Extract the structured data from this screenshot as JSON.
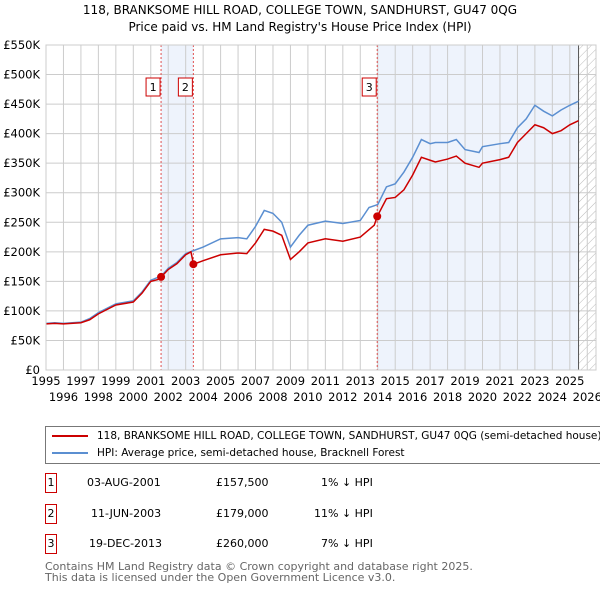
{
  "title": "118, BRANKSOME HILL ROAD, COLLEGE TOWN, SANDHURST, GU47 0QG",
  "subtitle": "Price paid vs. HM Land Registry's House Price Index (HPI)",
  "chart_data": {
    "type": "line",
    "ylim": [
      0,
      550000
    ],
    "xlim": [
      1995,
      2026.5
    ],
    "yticks": [
      {
        "v": 0,
        "l": "£0"
      },
      {
        "v": 50000,
        "l": "£50K"
      },
      {
        "v": 100000,
        "l": "£100K"
      },
      {
        "v": 150000,
        "l": "£150K"
      },
      {
        "v": 200000,
        "l": "£200K"
      },
      {
        "v": 250000,
        "l": "£250K"
      },
      {
        "v": 300000,
        "l": "£300K"
      },
      {
        "v": 350000,
        "l": "£350K"
      },
      {
        "v": 400000,
        "l": "£400K"
      },
      {
        "v": 450000,
        "l": "£450K"
      },
      {
        "v": 500000,
        "l": "£500K"
      },
      {
        "v": 550000,
        "l": "£550K"
      }
    ],
    "xticks": [
      "1995",
      "1996",
      "1997",
      "1998",
      "1999",
      "2000",
      "2001",
      "2002",
      "2003",
      "2004",
      "2005",
      "2006",
      "2007",
      "2008",
      "2009",
      "2010",
      "2011",
      "2012",
      "2013",
      "2014",
      "2015",
      "2016",
      "2017",
      "2018",
      "2019",
      "2020",
      "2021",
      "2022",
      "2023",
      "2024",
      "2025",
      "2026"
    ],
    "series": [
      {
        "name": "118, BRANKSOME HILL ROAD, COLLEGE TOWN, SANDHURST, GU47 0QG (semi-detached house)",
        "color": "#cc0000",
        "x": [
          1995,
          1995.5,
          1996,
          1997,
          1997.5,
          1998,
          1999,
          2000,
          2000.5,
          2001,
          2001.4,
          2001.6,
          2002,
          2002.5,
          2003,
          2003.3,
          2003.45,
          2004,
          2005,
          2006,
          2006.5,
          2007,
          2007.5,
          2008,
          2008.5,
          2009,
          2009.5,
          2010,
          2011,
          2012,
          2013,
          2013.8,
          2013.97,
          2014.5,
          2015,
          2015.5,
          2016,
          2016.5,
          2017,
          2017.3,
          2018,
          2018.5,
          2019,
          2019.8,
          2020,
          2021,
          2021.5,
          2022,
          2022.5,
          2023,
          2023.5,
          2024,
          2024.5,
          2025,
          2025.5
        ],
        "y": [
          78,
          79,
          78,
          80,
          85,
          95,
          110,
          115,
          130,
          150,
          153,
          157.5,
          170,
          180,
          195,
          200,
          179,
          185,
          195,
          198,
          197,
          215,
          238,
          235,
          228,
          187,
          200,
          215,
          222,
          218,
          225,
          245,
          260,
          290,
          292,
          305,
          330,
          360,
          355,
          352,
          357,
          362,
          350,
          343,
          350,
          356,
          360,
          385,
          400,
          415,
          410,
          400,
          405,
          415,
          422
        ]
      },
      {
        "name": "HPI: Average price, semi-detached house, Bracknell Forest",
        "color": "#5b8fd1",
        "x": [
          1995,
          1995.5,
          1996,
          1997,
          1997.5,
          1998,
          1999,
          2000,
          2000.5,
          2001,
          2001.6,
          2002,
          2002.5,
          2003,
          2003.45,
          2004,
          2005,
          2006,
          2006.5,
          2007,
          2007.5,
          2008,
          2008.5,
          2009,
          2009.5,
          2010,
          2011,
          2012,
          2013,
          2013.5,
          2014,
          2014.5,
          2015,
          2015.5,
          2016,
          2016.5,
          2017,
          2017.3,
          2018,
          2018.5,
          2019,
          2019.8,
          2020,
          2021,
          2021.5,
          2022,
          2022.5,
          2023,
          2023.5,
          2024,
          2024.5,
          2025,
          2025.5
        ],
        "y": [
          79,
          80,
          79,
          81,
          87,
          97,
          112,
          117,
          132,
          152,
          159,
          172,
          182,
          197,
          202,
          208,
          222,
          224,
          222,
          243,
          270,
          265,
          250,
          208,
          228,
          245,
          252,
          248,
          253,
          275,
          280,
          310,
          315,
          335,
          360,
          390,
          383,
          385,
          385,
          390,
          373,
          368,
          378,
          383,
          385,
          410,
          425,
          448,
          438,
          430,
          440,
          448,
          455
        ]
      }
    ],
    "sales": [
      {
        "n": "1",
        "x": 2001.59,
        "y": 157500
      },
      {
        "n": "2",
        "x": 2003.44,
        "y": 179000
      },
      {
        "n": "3",
        "x": 2013.97,
        "y": 260000
      }
    ],
    "shaded": [
      [
        2001.59,
        2003.44
      ],
      [
        2013.97,
        2025.5
      ]
    ],
    "hatch_from": 2025.5
  },
  "legend": [
    "118, BRANKSOME HILL ROAD, COLLEGE TOWN, SANDHURST, GU47 0QG (semi-detached house)",
    "HPI: Average price, semi-detached house, Bracknell Forest"
  ],
  "transactions": [
    {
      "n": "1",
      "date": "03-AUG-2001",
      "price": "£157,500",
      "hpi": "1% ↓ HPI"
    },
    {
      "n": "2",
      "date": "11-JUN-2003",
      "price": "£179,000",
      "hpi": "11% ↓ HPI"
    },
    {
      "n": "3",
      "date": "19-DEC-2013",
      "price": "£260,000",
      "hpi": "7% ↓ HPI"
    }
  ],
  "footer": [
    "Contains HM Land Registry data © Crown copyright and database right 2025.",
    "This data is licensed under the Open Government Licence v3.0."
  ]
}
